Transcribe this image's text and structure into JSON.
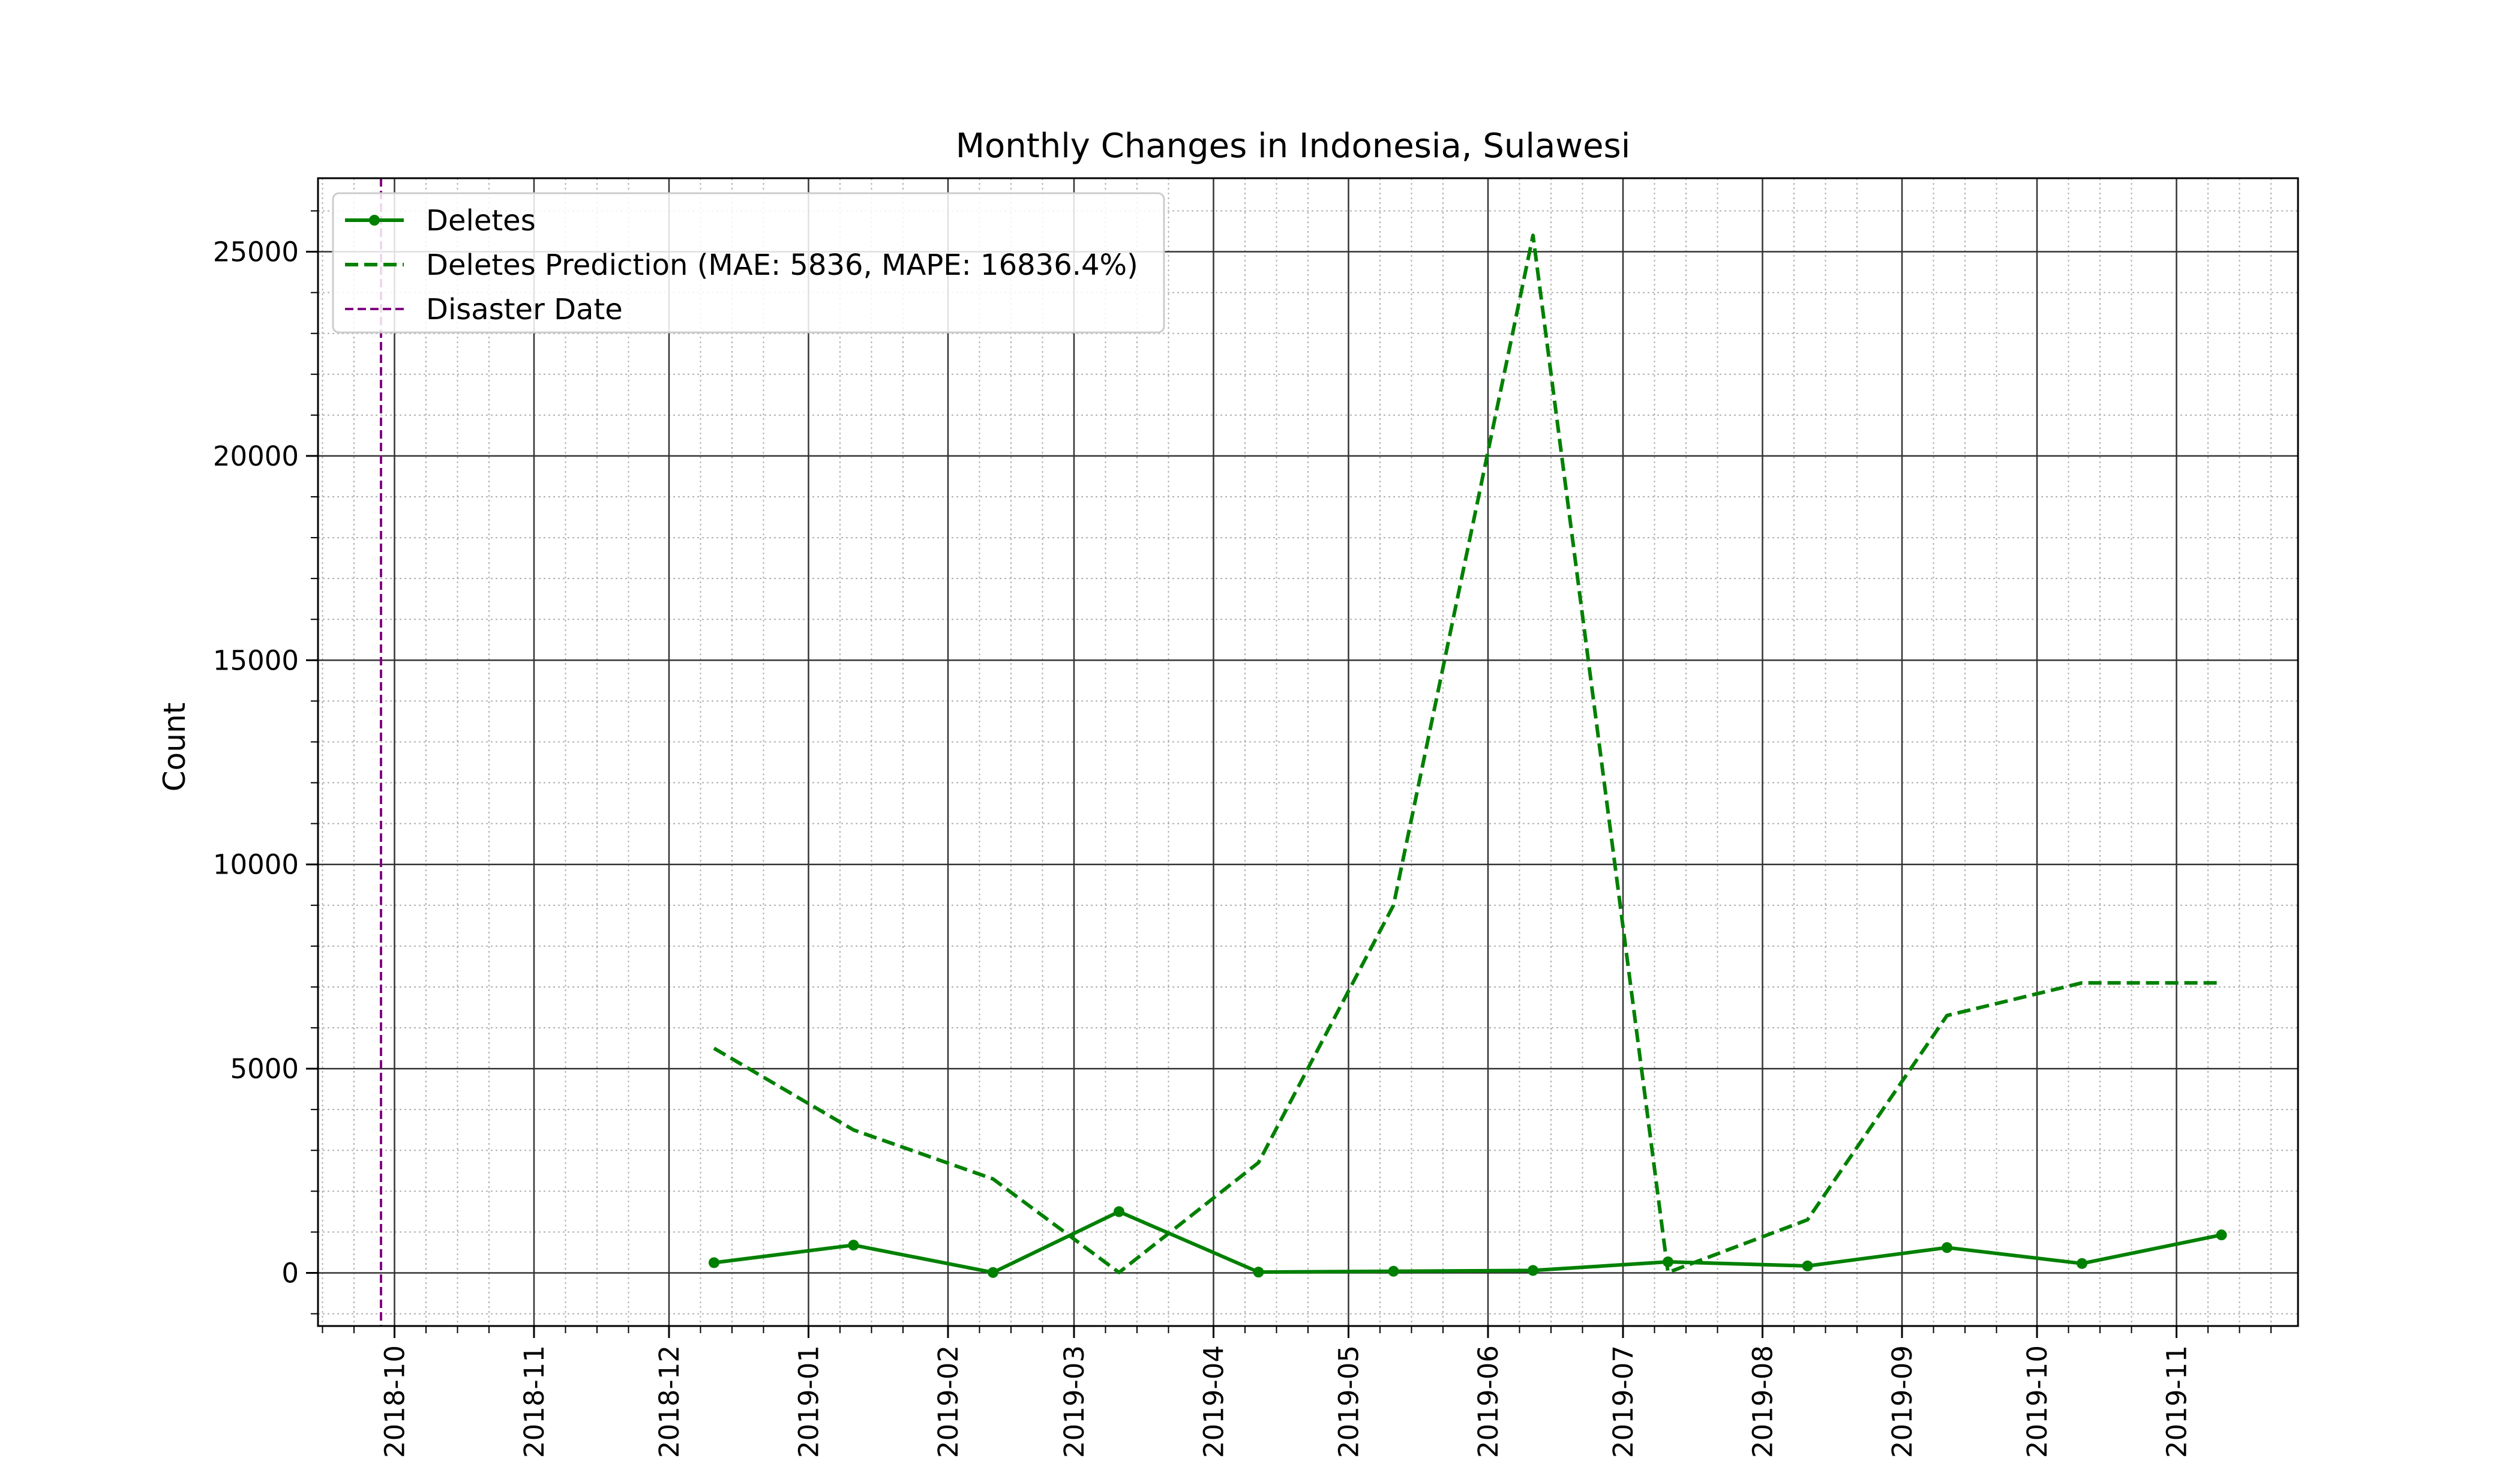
{
  "chart_data": {
    "type": "line",
    "title": "Monthly Changes in Indonesia, Sulawesi",
    "xlabel": "Date",
    "ylabel": "Count",
    "x_axis": {
      "type": "date",
      "range": [
        "2018-09-14",
        "2019-11-28"
      ],
      "tick_labels": [
        "2018-10",
        "2018-11",
        "2018-12",
        "2019-01",
        "2019-02",
        "2019-03",
        "2019-04",
        "2019-05",
        "2019-06",
        "2019-07",
        "2019-08",
        "2019-09",
        "2019-10",
        "2019-11"
      ],
      "tick_dates": [
        "2018-10-01",
        "2018-11-01",
        "2018-12-01",
        "2019-01-01",
        "2019-02-01",
        "2019-03-01",
        "2019-04-01",
        "2019-05-01",
        "2019-06-01",
        "2019-07-01",
        "2019-08-01",
        "2019-09-01",
        "2019-10-01",
        "2019-11-01"
      ],
      "tick_rotation_deg": 90
    },
    "y_axis": {
      "range": [
        -1300,
        26800
      ],
      "tick_values": [
        0,
        5000,
        10000,
        15000,
        20000,
        25000
      ],
      "tick_labels": [
        "0",
        "5000",
        "10000",
        "15000",
        "20000",
        "25000"
      ]
    },
    "grid": {
      "major": true,
      "minor": true
    },
    "legend": {
      "placement": "top-left",
      "entries": [
        "Deletes",
        "Deletes Prediction (MAE: 5836, MAPE: 16836.4%)",
        "Disaster Date"
      ]
    },
    "series": [
      {
        "name": "Deletes",
        "style": "solid-with-markers",
        "color": "#008000",
        "points": [
          {
            "x": "2018-12-11",
            "y": 250
          },
          {
            "x": "2019-01-11",
            "y": 680
          },
          {
            "x": "2019-02-11",
            "y": 10
          },
          {
            "x": "2019-03-11",
            "y": 1500
          },
          {
            "x": "2019-04-11",
            "y": 20
          },
          {
            "x": "2019-05-11",
            "y": 40
          },
          {
            "x": "2019-06-11",
            "y": 60
          },
          {
            "x": "2019-07-11",
            "y": 270
          },
          {
            "x": "2019-08-11",
            "y": 170
          },
          {
            "x": "2019-09-11",
            "y": 620
          },
          {
            "x": "2019-10-11",
            "y": 230
          },
          {
            "x": "2019-11-11",
            "y": 930
          }
        ]
      },
      {
        "name": "Deletes Prediction (MAE: 5836, MAPE: 16836.4%)",
        "style": "dashed",
        "color": "#008000",
        "points": [
          {
            "x": "2018-12-11",
            "y": 5500
          },
          {
            "x": "2019-01-11",
            "y": 3500
          },
          {
            "x": "2019-02-11",
            "y": 2300
          },
          {
            "x": "2019-03-11",
            "y": 10
          },
          {
            "x": "2019-04-11",
            "y": 2700
          },
          {
            "x": "2019-05-11",
            "y": 9000
          },
          {
            "x": "2019-06-11",
            "y": 25400
          },
          {
            "x": "2019-07-11",
            "y": 10
          },
          {
            "x": "2019-08-11",
            "y": 1300
          },
          {
            "x": "2019-09-11",
            "y": 6300
          },
          {
            "x": "2019-10-11",
            "y": 7100
          },
          {
            "x": "2019-11-11",
            "y": 7100
          }
        ]
      }
    ],
    "annotations": [
      {
        "name": "Disaster Date",
        "type": "vertical-line",
        "x": "2018-09-28",
        "style": "dashed",
        "color": "#800080"
      }
    ]
  }
}
